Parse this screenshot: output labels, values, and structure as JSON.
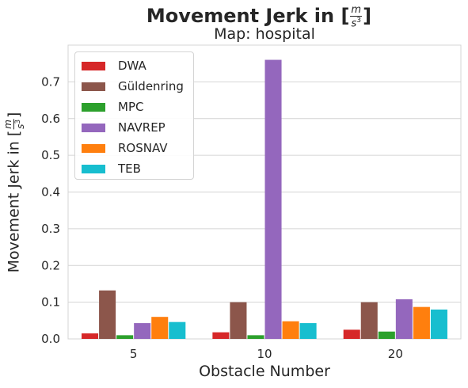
{
  "title": {
    "prefix": "Movement Jerk in [",
    "unit_num": "m",
    "unit_den": "s",
    "unit_den_exp": "3",
    "suffix": "]"
  },
  "subtitle": "Map: hospital",
  "colors": {
    "DWA": "#d62728",
    "Güldenring": "#8c564b",
    "MPC": "#2ca02c",
    "NAVREP": "#9467bd",
    "ROSNAV": "#ff7f0e",
    "TEB": "#17becf"
  },
  "chart_data": {
    "type": "bar",
    "title": "Movement Jerk in [m/s^3]",
    "subtitle": "Map: hospital",
    "xlabel": "Obstacle Number",
    "ylabel": {
      "prefix": "Movement Jerk in [",
      "unit_num": "m",
      "unit_den": "s",
      "unit_den_exp": "3",
      "suffix": "]"
    },
    "categories": [
      "5",
      "10",
      "20"
    ],
    "ylim": [
      0,
      0.8
    ],
    "yticks": [
      "0.0",
      "0.1",
      "0.2",
      "0.3",
      "0.4",
      "0.5",
      "0.6",
      "0.7"
    ],
    "grid": true,
    "legend_position": "top-left",
    "series": [
      {
        "name": "DWA",
        "values": [
          0.015,
          0.018,
          0.025
        ]
      },
      {
        "name": "Güldenring",
        "values": [
          0.132,
          0.1,
          0.1
        ]
      },
      {
        "name": "MPC",
        "values": [
          0.01,
          0.01,
          0.02
        ]
      },
      {
        "name": "NAVREP",
        "values": [
          0.043,
          0.76,
          0.108
        ]
      },
      {
        "name": "ROSNAV",
        "values": [
          0.06,
          0.048,
          0.087
        ]
      },
      {
        "name": "TEB",
        "values": [
          0.046,
          0.043,
          0.08
        ]
      }
    ]
  }
}
